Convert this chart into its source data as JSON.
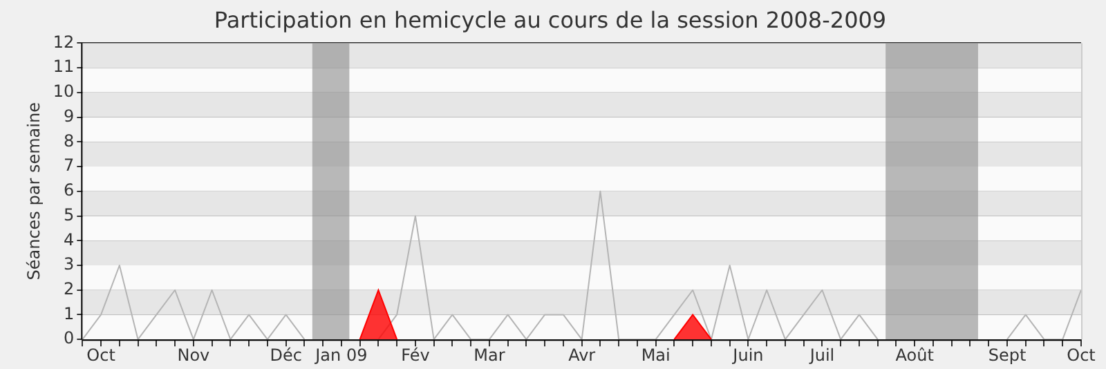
{
  "chart_data": {
    "type": "line",
    "title": "Participation en hemicycle au cours de la session 2008-2009",
    "ylabel": "Séances par semaine",
    "x": [
      "2008-09-29",
      "2008-10-06",
      "2008-10-13",
      "2008-10-20",
      "2008-10-27",
      "2008-11-03",
      "2008-11-10",
      "2008-11-17",
      "2008-11-24",
      "2008-12-01",
      "2008-12-08",
      "2008-12-15",
      "2008-12-22",
      "2008-12-29",
      "2009-01-05",
      "2009-01-12",
      "2009-01-19",
      "2009-01-26",
      "2009-02-02",
      "2009-02-09",
      "2009-02-16",
      "2009-02-23",
      "2009-03-02",
      "2009-03-09",
      "2009-03-16",
      "2009-03-23",
      "2009-03-30",
      "2009-04-06",
      "2009-04-13",
      "2009-04-20",
      "2009-04-27",
      "2009-05-04",
      "2009-05-11",
      "2009-05-18",
      "2009-05-25",
      "2009-06-01",
      "2009-06-08",
      "2009-06-15",
      "2009-06-22",
      "2009-06-29",
      "2009-07-06",
      "2009-07-13",
      "2009-07-20",
      "2009-07-27",
      "2009-08-03",
      "2009-08-10",
      "2009-08-17",
      "2009-08-24",
      "2009-08-31",
      "2009-09-07",
      "2009-09-14",
      "2009-09-21",
      "2009-09-28",
      "2009-10-05",
      "2009-10-12"
    ],
    "series": [
      {
        "type": "line",
        "color": "#b4b4b4",
        "values": [
          0,
          1,
          3,
          0,
          1,
          2,
          0,
          2,
          0,
          1,
          0,
          1,
          0,
          null,
          null,
          0,
          0,
          1,
          5,
          0,
          1,
          0,
          0,
          1,
          0,
          1,
          1,
          0,
          6,
          0,
          0,
          0,
          1,
          2,
          0,
          3,
          0,
          2,
          0,
          1,
          2,
          0,
          1,
          0,
          null,
          null,
          null,
          null,
          null,
          null,
          0,
          1,
          0,
          0,
          2
        ]
      },
      {
        "type": "area",
        "color": "#ff0000",
        "values": [
          null,
          null,
          null,
          null,
          null,
          null,
          null,
          null,
          null,
          null,
          null,
          null,
          null,
          null,
          null,
          0,
          2,
          0,
          null,
          null,
          null,
          null,
          null,
          null,
          null,
          null,
          null,
          null,
          null,
          null,
          null,
          null,
          0,
          1,
          0,
          null,
          null,
          null,
          null,
          null,
          null,
          null,
          null,
          null,
          null,
          null,
          null,
          null,
          null,
          null,
          null,
          null,
          null,
          null,
          null
        ]
      }
    ],
    "xlim": [
      "2008-09-29",
      "2009-10-12"
    ],
    "xticks": [
      {
        "value": "2008-09-29",
        "label": null
      },
      {
        "value": "2008-10-06",
        "label": "Oct"
      },
      {
        "value": "2008-10-13",
        "label": null
      },
      {
        "value": "2008-10-20",
        "label": null
      },
      {
        "value": "2008-10-27",
        "label": null
      },
      {
        "value": "2008-11-03",
        "label": null
      },
      {
        "value": "2008-11-10",
        "label": "Nov"
      },
      {
        "value": "2008-11-17",
        "label": null
      },
      {
        "value": "2008-11-24",
        "label": null
      },
      {
        "value": "2008-12-01",
        "label": null
      },
      {
        "value": "2008-12-08",
        "label": null
      },
      {
        "value": "2008-12-15",
        "label": "Déc"
      },
      {
        "value": "2008-12-22",
        "label": null
      },
      {
        "value": "2008-12-29",
        "label": null
      },
      {
        "value": "2009-01-05",
        "label": "Jan 09"
      },
      {
        "value": "2009-01-12",
        "label": null
      },
      {
        "value": "2009-01-19",
        "label": null
      },
      {
        "value": "2009-01-26",
        "label": null
      },
      {
        "value": "2009-02-02",
        "label": "Fév"
      },
      {
        "value": "2009-02-09",
        "label": null
      },
      {
        "value": "2009-02-16",
        "label": null
      },
      {
        "value": "2009-02-23",
        "label": null
      },
      {
        "value": "2009-03-02",
        "label": "Mar"
      },
      {
        "value": "2009-03-09",
        "label": null
      },
      {
        "value": "2009-03-16",
        "label": null
      },
      {
        "value": "2009-03-23",
        "label": null
      },
      {
        "value": "2009-03-30",
        "label": null
      },
      {
        "value": "2009-04-06",
        "label": "Avr"
      },
      {
        "value": "2009-04-13",
        "label": null
      },
      {
        "value": "2009-04-20",
        "label": null
      },
      {
        "value": "2009-04-27",
        "label": null
      },
      {
        "value": "2009-05-04",
        "label": "Mai"
      },
      {
        "value": "2009-05-11",
        "label": null
      },
      {
        "value": "2009-05-18",
        "label": null
      },
      {
        "value": "2009-05-25",
        "label": null
      },
      {
        "value": "2009-06-01",
        "label": null
      },
      {
        "value": "2009-06-08",
        "label": "Juin"
      },
      {
        "value": "2009-06-15",
        "label": null
      },
      {
        "value": "2009-06-22",
        "label": null
      },
      {
        "value": "2009-06-29",
        "label": null
      },
      {
        "value": "2009-07-06",
        "label": "Juil"
      },
      {
        "value": "2009-07-13",
        "label": null
      },
      {
        "value": "2009-07-20",
        "label": null
      },
      {
        "value": "2009-07-27",
        "label": null
      },
      {
        "value": "2009-08-03",
        "label": null
      },
      {
        "value": "2009-08-10",
        "label": "Août"
      },
      {
        "value": "2009-08-17",
        "label": null
      },
      {
        "value": "2009-08-24",
        "label": null
      },
      {
        "value": "2009-08-31",
        "label": null
      },
      {
        "value": "2009-09-07",
        "label": null
      },
      {
        "value": "2009-09-14",
        "label": "Sept"
      },
      {
        "value": "2009-09-21",
        "label": null
      },
      {
        "value": "2009-09-28",
        "label": null
      },
      {
        "value": "2009-10-05",
        "label": null
      },
      {
        "value": "2009-10-12",
        "label": "Oct"
      }
    ],
    "ylim": [
      0,
      12
    ],
    "yticks": [
      0,
      1,
      2,
      3,
      4,
      5,
      6,
      7,
      8,
      9,
      10,
      11,
      12
    ],
    "bands": [
      {
        "axis": "x",
        "from": "2008-12-25",
        "to": "2009-01-08",
        "color": "#8c8c8c"
      },
      {
        "axis": "x",
        "from": "2009-07-30",
        "to": "2009-09-03",
        "color": "#8c8c8c"
      }
    ],
    "grid": "y",
    "legend": false
  }
}
